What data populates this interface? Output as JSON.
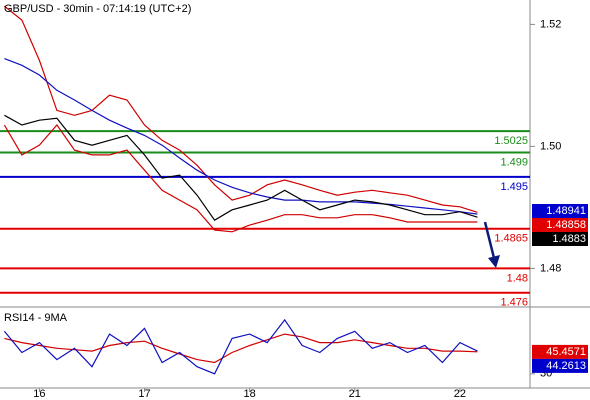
{
  "chart_data": [
    {
      "type": "line",
      "title": "GBP/USD - 30min - 07:14:19 (UTC+2)",
      "x": [
        -8,
        -4,
        0,
        4,
        8,
        12,
        16,
        20,
        24,
        28,
        32,
        36,
        40,
        44,
        48,
        52,
        56,
        60,
        64,
        68,
        72,
        76,
        80,
        84,
        88,
        92,
        96,
        100
      ],
      "series": [
        {
          "color": "#d00000",
          "values": [
            1.523,
            1.5207,
            1.5141,
            1.5059,
            1.5051,
            1.5059,
            1.5084,
            1.5076,
            1.5035,
            1.501,
            1.4994,
            1.4969,
            1.4937,
            1.4912,
            1.492,
            1.4937,
            1.4945,
            1.4937,
            1.4928,
            1.492,
            1.4925,
            1.4928,
            1.4924,
            1.492,
            1.4912,
            1.4904,
            1.4901,
            1.4892
          ]
        },
        {
          "color": "#d00000",
          "values": [
            1.5035,
            1.4986,
            1.5002,
            1.5035,
            1.4994,
            1.4986,
            1.4986,
            1.4994,
            1.4961,
            1.4928,
            1.4912,
            1.4896,
            1.4863,
            1.486,
            1.4871,
            1.4879,
            1.4888,
            1.4888,
            1.4883,
            1.4883,
            1.4888,
            1.4888,
            1.4883,
            1.4876,
            1.4876,
            1.4876,
            1.4876,
            1.4876
          ]
        },
        {
          "color": "#1010c0",
          "values": [
            1.5144,
            1.5133,
            1.5117,
            1.5092,
            1.5076,
            1.5059,
            1.5043,
            1.503,
            1.5018,
            1.5002,
            1.4981,
            1.4961,
            1.4945,
            1.4933,
            1.4924,
            1.4917,
            1.4912,
            1.4912,
            1.4909,
            1.4909,
            1.4909,
            1.4907,
            1.4905,
            1.4902,
            1.4899,
            1.4896,
            1.4893,
            1.4889
          ]
        },
        {
          "color": "#000000",
          "values": [
            1.5051,
            1.5035,
            1.5043,
            1.5046,
            1.501,
            1.5002,
            1.501,
            1.5018,
            1.4986,
            1.4948,
            1.4953,
            1.492,
            1.4879,
            1.4896,
            1.4904,
            1.4912,
            1.4928,
            1.4912,
            1.4896,
            1.4904,
            1.4912,
            1.4909,
            1.4904,
            1.4896,
            1.4888,
            1.4888,
            1.4893,
            1.4884
          ]
        }
      ],
      "xlim": [
        -9,
        112
      ],
      "xticks": [
        {
          "value": 0,
          "label": "16"
        },
        {
          "value": 24,
          "label": "17"
        },
        {
          "value": 48,
          "label": "18"
        },
        {
          "value": 72,
          "label": "21"
        },
        {
          "value": 96,
          "label": "22"
        }
      ],
      "ylim": [
        1.474,
        1.524
      ],
      "yticks": [
        1.48,
        {
          "value": 1.5,
          "label": "1.50"
        },
        1.52
      ],
      "levels": [
        {
          "value": 1.5025,
          "color": "#1a8c1a"
        },
        {
          "value": 1.499,
          "color": "#1a8c1a"
        },
        {
          "value": 1.495,
          "color": "#0000cc"
        },
        {
          "value": 1.4865,
          "color": "#e00000"
        },
        {
          "value": 1.48,
          "color": "#e00000"
        },
        {
          "value": 1.476,
          "color": "#e00000"
        }
      ],
      "markers": [
        {
          "value": 1.48941,
          "color": "#0000cc"
        },
        {
          "value": 1.48858,
          "color": "#e00000"
        },
        {
          "value": 1.4883,
          "color": "#000000"
        }
      ]
    },
    {
      "type": "line",
      "title": "RSI14 - 9MA",
      "x": [
        -8,
        -4,
        0,
        4,
        8,
        12,
        16,
        20,
        24,
        28,
        32,
        36,
        40,
        44,
        48,
        52,
        56,
        60,
        64,
        68,
        72,
        76,
        80,
        84,
        88,
        92,
        96,
        100
      ],
      "series": [
        {
          "color": "#d00000",
          "values": [
            55,
            52,
            50,
            48,
            47,
            46,
            50,
            52,
            53,
            48,
            44,
            40,
            38,
            45,
            50,
            54,
            58,
            56,
            52,
            52,
            54,
            52,
            50,
            48,
            48,
            46,
            46,
            45.5
          ]
        },
        {
          "color": "#1010c0",
          "values": [
            60,
            45,
            52,
            40,
            48,
            35,
            58,
            50,
            62,
            38,
            45,
            35,
            30,
            55,
            58,
            52,
            68,
            50,
            45,
            55,
            60,
            48,
            52,
            45,
            50,
            38,
            52,
            46
          ]
        }
      ],
      "xlim": [
        -9,
        112
      ],
      "ylim": [
        20,
        75
      ],
      "yticks": [
        30
      ],
      "markers": [
        {
          "value": 45.4571,
          "color": "#e00000"
        },
        {
          "value": 44.2613,
          "color": "#0000cc"
        }
      ]
    }
  ]
}
